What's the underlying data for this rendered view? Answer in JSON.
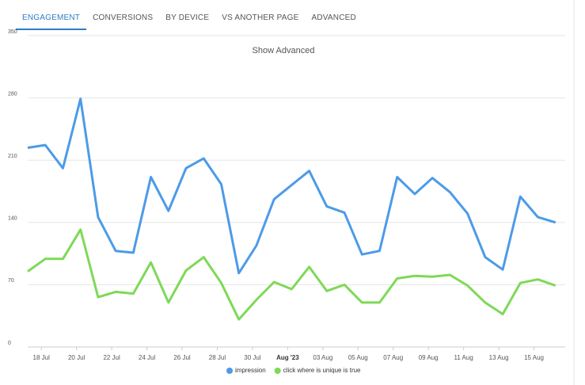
{
  "tabs": [
    "ENGAGEMENT",
    "CONVERSIONS",
    "BY DEVICE",
    "VS ANOTHER PAGE",
    "ADVANCED"
  ],
  "chart_data": {
    "type": "line",
    "title": "Show Advanced",
    "categories": [
      null,
      "18 Jul",
      null,
      "20 Jul",
      null,
      "22 Jul",
      null,
      "24 Jul",
      null,
      "26 Jul",
      null,
      "28 Jul",
      null,
      "30 Jul",
      null,
      "Aug '23",
      null,
      "03 Aug",
      null,
      "05 Aug",
      null,
      "07 Aug",
      null,
      "09 Aug",
      null,
      "11 Aug",
      null,
      "13 Aug",
      null,
      "15 Aug",
      null
    ],
    "series": [
      {
        "name": "impression",
        "color": "#4c9be8",
        "values": [
          224,
          227,
          201,
          279,
          146,
          108,
          106,
          191,
          153,
          201,
          212,
          183,
          83,
          114,
          166,
          182,
          198,
          158,
          151,
          104,
          108,
          191,
          172,
          190,
          174,
          150,
          101,
          87,
          169,
          146,
          140
        ]
      },
      {
        "name": "click where is unique is true",
        "color": "#7ed957",
        "values": [
          85,
          99,
          99,
          132,
          56,
          62,
          60,
          95,
          50,
          86,
          101,
          72,
          31,
          53,
          73,
          65,
          90,
          63,
          70,
          50,
          50,
          77,
          80,
          79,
          81,
          69,
          50,
          37,
          72,
          76,
          69
        ]
      }
    ],
    "ylim": [
      0,
      350
    ],
    "yticks": [
      0,
      70,
      140,
      210,
      280,
      350
    ],
    "grid": true
  }
}
